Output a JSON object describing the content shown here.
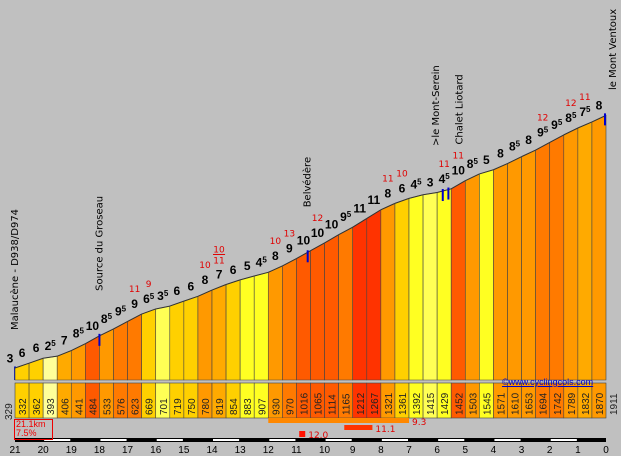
{
  "chart_data": {
    "type": "area",
    "title": "",
    "xlabel": "",
    "ylabel": "",
    "x_unit_ticks": [
      "21",
      "20",
      "19",
      "18",
      "17",
      "16",
      "15",
      "14",
      "13",
      "12",
      "11",
      "10",
      "9",
      "8",
      "7",
      "6",
      "5",
      "4",
      "3",
      "2",
      "1",
      "0"
    ],
    "segment_length_km": 0.5,
    "start_altitude": 329,
    "start_gradient": 3,
    "end_altitude": 1911,
    "segments": {
      "altitude_start": [
        332,
        362,
        393,
        406,
        441,
        484,
        533,
        576,
        623,
        669,
        701,
        719,
        750,
        780,
        819,
        854,
        883,
        907,
        930,
        970,
        1016,
        1065,
        1114,
        1165,
        1212,
        1267,
        1321,
        1361,
        1392,
        1415,
        1429,
        1452,
        1503,
        1545,
        1571,
        1610,
        1653,
        1694,
        1742,
        1789,
        1832,
        1870
      ],
      "gradient": [
        6,
        6,
        2.5,
        7,
        8.5,
        10,
        8.5,
        9.5,
        9,
        6.5,
        3.5,
        6,
        6,
        8,
        7,
        6,
        5,
        4.5,
        8,
        9,
        10,
        10,
        10,
        9.5,
        11,
        11,
        8,
        6,
        4.5,
        3,
        4.5,
        10,
        8.5,
        5,
        8,
        8.5,
        8,
        9.5,
        9.5,
        8.5,
        7.5,
        8
      ]
    },
    "max_gradients": [
      {
        "segment": 8,
        "labels": [
          "11"
        ]
      },
      {
        "segment": 9,
        "labels": [
          "9"
        ]
      },
      {
        "segment": 13,
        "labels": [
          "10"
        ]
      },
      {
        "segment": 14,
        "labels": [
          "10",
          "11"
        ]
      },
      {
        "segment": 18,
        "labels": [
          "10"
        ]
      },
      {
        "segment": 19,
        "labels": [
          "13"
        ]
      },
      {
        "segment": 21,
        "labels": [
          "12"
        ]
      },
      {
        "segment": 26,
        "labels": [
          "11"
        ]
      },
      {
        "segment": 27,
        "labels": [
          "10"
        ]
      },
      {
        "segment": 30,
        "labels": [
          "11"
        ]
      },
      {
        "segment": 31,
        "labels": [
          "11"
        ]
      },
      {
        "segment": 37,
        "labels": [
          "12"
        ]
      },
      {
        "segment": 39,
        "labels": [
          "12"
        ]
      },
      {
        "segment": 40,
        "labels": [
          "11"
        ]
      }
    ],
    "places": [
      {
        "km_from_top": 21.0,
        "name": "Malaucène - D938/D974"
      },
      {
        "km_from_top": 18.0,
        "name": "Source du Groseau"
      },
      {
        "km_from_top": 10.6,
        "name": "Belvédère"
      },
      {
        "km_from_top": 5.8,
        "name": ">le Mont-Serein"
      },
      {
        "km_from_top": 5.6,
        "name": "Chalet Liotard"
      },
      {
        "km_from_top": 0.0,
        "name": "le Mont Ventoux"
      }
    ],
    "steep_sections": [
      {
        "from_km": 12,
        "to_km": 7,
        "label": "9.3",
        "color": "#ff8800"
      },
      {
        "from_km": 9.3,
        "to_km": 8.3,
        "label": "11.1",
        "color": "#ff3300"
      },
      {
        "from_km": 10.9,
        "to_km": 10.7,
        "label": "12.0",
        "color": "#ff1100"
      }
    ],
    "summary": {
      "distance": "21.1km",
      "gradient": "7.5%"
    },
    "colors": {
      "background": "#c0c0c0",
      "marker": "#0000cc",
      "max_label": "#e00000"
    }
  },
  "credit": "©www.cyclingcols.com"
}
